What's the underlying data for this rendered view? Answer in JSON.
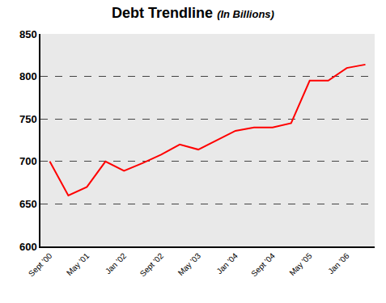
{
  "chart_data": {
    "type": "line",
    "title": "Debt Trendline",
    "subtitle": "(In Billions)",
    "categories": [
      "Sept '00",
      null,
      "May '01",
      null,
      "Jan '02",
      null,
      "Sept '02",
      null,
      "May '03",
      null,
      "Jan '04",
      null,
      "Sept '04",
      null,
      "May '05",
      null,
      "Jan '06",
      null
    ],
    "values": [
      700,
      660,
      670,
      700,
      689,
      698,
      708,
      720,
      714,
      725,
      736,
      740,
      740,
      745,
      795,
      795,
      810,
      814
    ],
    "color": "#ff0000",
    "ylim": [
      600,
      850
    ],
    "yticks": [
      600,
      650,
      700,
      750,
      800,
      850
    ],
    "grid": true
  }
}
